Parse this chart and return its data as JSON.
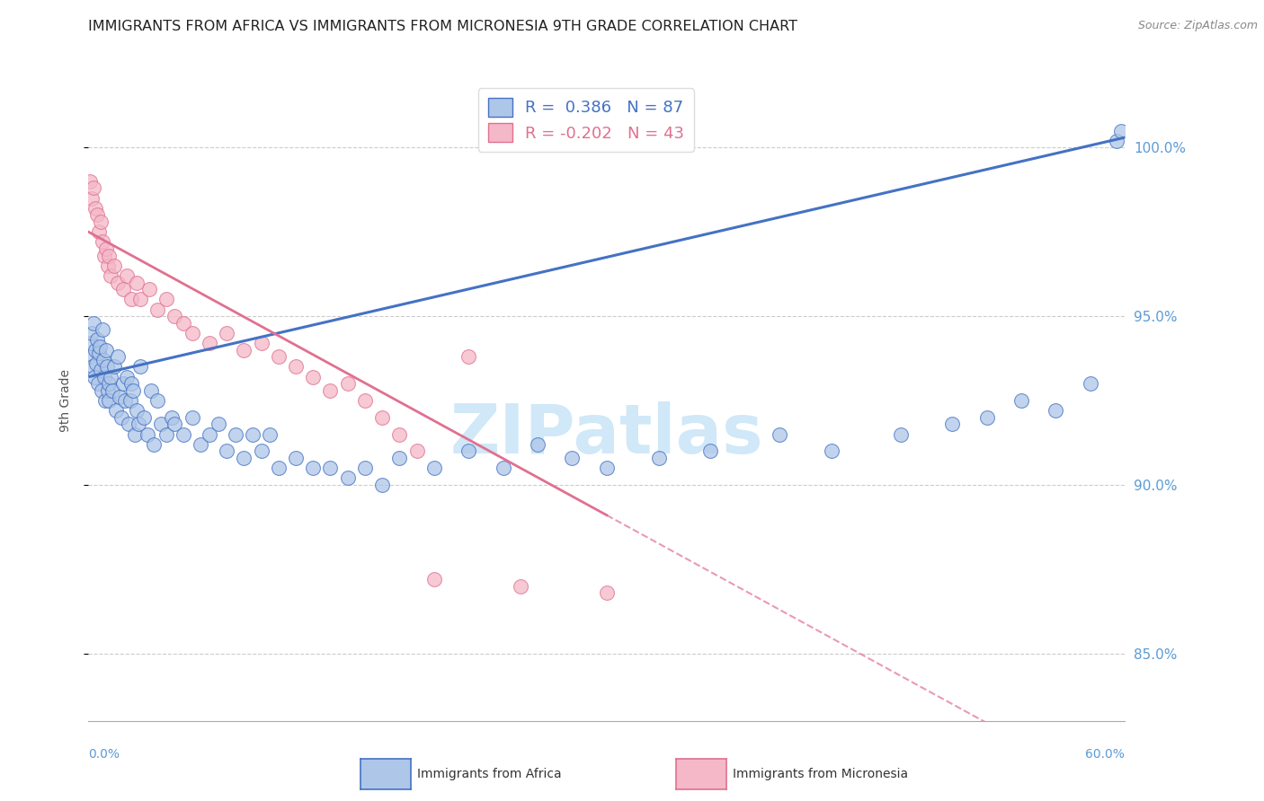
{
  "title": "IMMIGRANTS FROM AFRICA VS IMMIGRANTS FROM MICRONESIA 9TH GRADE CORRELATION CHART",
  "source": "Source: ZipAtlas.com",
  "ylabel": "9th Grade",
  "xlim": [
    0.0,
    60.0
  ],
  "ylim": [
    83.0,
    102.0
  ],
  "yticks": [
    85.0,
    90.0,
    95.0,
    100.0
  ],
  "r_africa": 0.386,
  "n_africa": 87,
  "r_micronesia": -0.202,
  "n_micronesia": 43,
  "color_africa_fill": "#aec6e8",
  "color_africa_edge": "#4472c4",
  "color_micronesia_fill": "#f4b8c8",
  "color_micronesia_edge": "#e07090",
  "color_africa_line": "#4472c4",
  "color_micronesia_line": "#e07090",
  "color_axis_labels": "#5b9bd5",
  "watermark_color": "#d0e8f8",
  "africa_x": [
    0.1,
    0.15,
    0.2,
    0.25,
    0.3,
    0.35,
    0.4,
    0.45,
    0.5,
    0.55,
    0.6,
    0.65,
    0.7,
    0.75,
    0.8,
    0.85,
    0.9,
    0.95,
    1.0,
    1.05,
    1.1,
    1.15,
    1.2,
    1.3,
    1.4,
    1.5,
    1.6,
    1.7,
    1.8,
    1.9,
    2.0,
    2.1,
    2.2,
    2.3,
    2.4,
    2.5,
    2.6,
    2.7,
    2.8,
    2.9,
    3.0,
    3.2,
    3.4,
    3.6,
    3.8,
    4.0,
    4.2,
    4.5,
    4.8,
    5.0,
    5.5,
    6.0,
    6.5,
    7.0,
    7.5,
    8.0,
    8.5,
    9.0,
    9.5,
    10.0,
    10.5,
    11.0,
    12.0,
    13.0,
    14.0,
    15.0,
    16.0,
    17.0,
    18.0,
    20.0,
    22.0,
    24.0,
    26.0,
    28.0,
    30.0,
    33.0,
    36.0,
    40.0,
    43.0,
    47.0,
    50.0,
    52.0,
    54.0,
    56.0,
    58.0,
    59.5,
    59.8
  ],
  "africa_y": [
    93.8,
    94.2,
    94.5,
    93.5,
    94.8,
    93.2,
    94.0,
    93.6,
    94.3,
    93.0,
    93.9,
    94.1,
    93.4,
    92.8,
    94.6,
    93.7,
    93.2,
    92.5,
    94.0,
    93.5,
    92.8,
    93.0,
    92.5,
    93.2,
    92.8,
    93.5,
    92.2,
    93.8,
    92.6,
    92.0,
    93.0,
    92.5,
    93.2,
    91.8,
    92.5,
    93.0,
    92.8,
    91.5,
    92.2,
    91.8,
    93.5,
    92.0,
    91.5,
    92.8,
    91.2,
    92.5,
    91.8,
    91.5,
    92.0,
    91.8,
    91.5,
    92.0,
    91.2,
    91.5,
    91.8,
    91.0,
    91.5,
    90.8,
    91.5,
    91.0,
    91.5,
    90.5,
    90.8,
    90.5,
    90.5,
    90.2,
    90.5,
    90.0,
    90.8,
    90.5,
    91.0,
    90.5,
    91.2,
    90.8,
    90.5,
    90.8,
    91.0,
    91.5,
    91.0,
    91.5,
    91.8,
    92.0,
    92.5,
    92.2,
    93.0,
    100.2,
    100.5
  ],
  "micronesia_x": [
    0.1,
    0.2,
    0.3,
    0.4,
    0.5,
    0.6,
    0.7,
    0.8,
    0.9,
    1.0,
    1.1,
    1.2,
    1.3,
    1.5,
    1.7,
    2.0,
    2.2,
    2.5,
    2.8,
    3.0,
    3.5,
    4.0,
    4.5,
    5.0,
    5.5,
    6.0,
    7.0,
    8.0,
    9.0,
    10.0,
    11.0,
    12.0,
    13.0,
    14.0,
    15.0,
    16.0,
    17.0,
    18.0,
    19.0,
    20.0,
    22.0,
    25.0,
    30.0
  ],
  "micronesia_y": [
    99.0,
    98.5,
    98.8,
    98.2,
    98.0,
    97.5,
    97.8,
    97.2,
    96.8,
    97.0,
    96.5,
    96.8,
    96.2,
    96.5,
    96.0,
    95.8,
    96.2,
    95.5,
    96.0,
    95.5,
    95.8,
    95.2,
    95.5,
    95.0,
    94.8,
    94.5,
    94.2,
    94.5,
    94.0,
    94.2,
    93.8,
    93.5,
    93.2,
    92.8,
    93.0,
    92.5,
    92.0,
    91.5,
    91.0,
    87.2,
    93.8,
    87.0,
    86.8
  ]
}
